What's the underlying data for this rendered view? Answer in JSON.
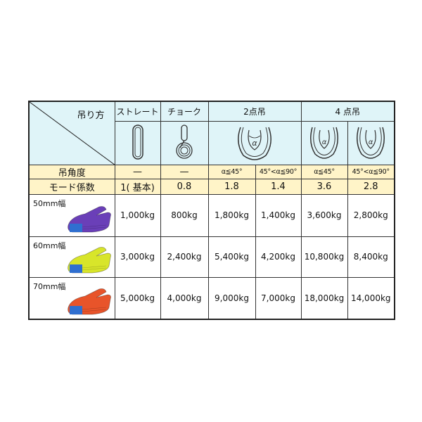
{
  "header": {
    "corner_label": "吊り方",
    "methods": [
      "ストレート",
      "チョーク",
      "2点吊",
      "4 点吊"
    ],
    "method_icons": [
      "straight-loop-icon",
      "choke-loop-icon",
      "two-point-basket-icon",
      "four-point-basket-icon",
      "four-point-basket-icon"
    ],
    "alpha_symbol": "α"
  },
  "angle_row": {
    "label": "吊角度",
    "values": [
      "—",
      "—",
      "α≦45°",
      "45°<α≦90°",
      "α≦45°",
      "45°<α≦90°"
    ]
  },
  "mode_row": {
    "label": "モード係数",
    "values": [
      "1( 基本)",
      "0.8",
      "1.8",
      "1.4",
      "3.6",
      "2.8"
    ]
  },
  "rows": [
    {
      "width": "50mm幅",
      "color": "#6a3fb8",
      "values": [
        "1,000kg",
        "800kg",
        "1,800kg",
        "1,400kg",
        "3,600kg",
        "2,800kg"
      ]
    },
    {
      "width": "60mm幅",
      "color": "#d8e52a",
      "values": [
        "3,000kg",
        "2,400kg",
        "5,400kg",
        "4,200kg",
        "10,800kg",
        "8,400kg"
      ]
    },
    {
      "width": "70mm幅",
      "color": "#e8542a",
      "values": [
        "5,000kg",
        "4,000kg",
        "9,000kg",
        "7,000kg",
        "18,000kg",
        "14,000kg"
      ]
    }
  ],
  "colors": {
    "header_bg": "#dff4f8",
    "label_bg": "#fff4c8",
    "tag_blue": "#2f6fd0"
  }
}
